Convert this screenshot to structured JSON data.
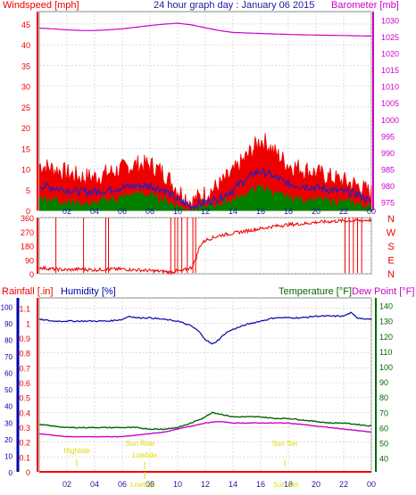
{
  "title": "24 hour graph day : January 06 2015",
  "colors": {
    "wind": "#ee0000",
    "gust_dark": "#2020c0",
    "wind_avg": "#008000",
    "barometer": "#cc00cc",
    "rain": "#ee0000",
    "humidity": "#0000aa",
    "temperature": "#006600",
    "dewpoint": "#cc00cc",
    "astro": "#dddd00",
    "grid": "#c8c8c8"
  },
  "chart_data": [
    {
      "type": "line",
      "panel": "wind_barometer",
      "title": "24 hour graph day : January 06 2015",
      "left_axis": {
        "label": "Windspeed [mph]",
        "ticks": [
          0,
          5,
          10,
          15,
          20,
          25,
          30,
          35,
          40,
          45
        ],
        "range": [
          0,
          48
        ]
      },
      "right_axis": {
        "label": "Barometer [mb]",
        "ticks": [
          975,
          980,
          985,
          990,
          995,
          1000,
          1005,
          1010,
          1015,
          1020,
          1025,
          1030
        ],
        "range": [
          972.5,
          1032.5
        ]
      },
      "x_ticks": [
        "02",
        "04",
        "06",
        "08",
        "10",
        "12",
        "14",
        "16",
        "18",
        "20",
        "22",
        "00"
      ],
      "x_hours": [
        0,
        24
      ],
      "series": [
        {
          "name": "Windspeed gust",
          "axis": "left",
          "x": [
            0,
            1,
            2,
            3,
            4,
            5,
            6,
            7,
            8,
            9,
            10,
            11,
            12,
            13,
            14,
            14.5,
            15,
            15.5,
            16,
            16.5,
            17,
            18,
            19,
            20,
            21,
            22,
            23,
            24
          ],
          "y": [
            11,
            10,
            9,
            8,
            8,
            9,
            10,
            11,
            11,
            9,
            5,
            2,
            4,
            6,
            9,
            11,
            13,
            15,
            17,
            16,
            14,
            11,
            10,
            9,
            8,
            7,
            6,
            4
          ]
        },
        {
          "name": "Windspeed average",
          "axis": "left",
          "x": [
            0,
            1,
            2,
            3,
            4,
            5,
            6,
            7,
            8,
            9,
            10,
            11,
            12,
            13,
            14,
            14.5,
            15,
            15.5,
            16,
            16.5,
            17,
            18,
            19,
            20,
            21,
            22,
            23,
            24
          ],
          "y": [
            6,
            5.5,
            5,
            4.5,
            4.5,
            5,
            5.5,
            6,
            6,
            5,
            2.5,
            1,
            2,
            3,
            5,
            6.5,
            7.5,
            9,
            9.5,
            9,
            8,
            6.5,
            6,
            5.5,
            5,
            4.5,
            4,
            2
          ]
        },
        {
          "name": "Windspeed low",
          "axis": "left",
          "x": [
            0,
            1,
            2,
            3,
            4,
            5,
            6,
            7,
            8,
            9,
            10,
            11,
            12,
            13,
            14,
            14.5,
            15,
            15.5,
            16,
            16.5,
            17,
            18,
            19,
            20,
            21,
            22,
            23,
            24
          ],
          "y": [
            3,
            2.5,
            2,
            1.5,
            1.5,
            2.5,
            3,
            4,
            3.5,
            2.5,
            1,
            0,
            0.5,
            1.5,
            2.5,
            3,
            4,
            5,
            5.5,
            5,
            4,
            3,
            2.5,
            2.5,
            2,
            2,
            1.5,
            0.5
          ]
        },
        {
          "name": "Barometer",
          "axis": "right",
          "x": [
            0,
            1,
            2,
            3,
            4,
            5,
            6,
            7,
            8,
            9,
            10,
            11,
            12,
            13,
            14,
            16,
            18,
            20,
            22,
            23,
            24
          ],
          "y": [
            1027.5,
            1027.3,
            1027.0,
            1026.8,
            1026.8,
            1027.0,
            1027.3,
            1027.8,
            1028.3,
            1028.7,
            1029.0,
            1028.5,
            1027.6,
            1026.8,
            1026.2,
            1025.9,
            1025.6,
            1025.4,
            1025.3,
            1025.2,
            1025.1
          ]
        }
      ]
    },
    {
      "type": "scatter",
      "panel": "wind_direction",
      "left_axis": {
        "ticks": [
          0,
          90,
          180,
          270,
          360
        ],
        "range": [
          0,
          360
        ]
      },
      "right_axis": {
        "labels": [
          "N",
          "W",
          "S",
          "E",
          "N"
        ]
      },
      "series": [
        {
          "name": "Wind direction",
          "x": [
            0,
            1,
            2,
            3,
            4,
            5,
            6,
            7,
            8,
            9,
            9.5,
            10,
            10.3,
            10.6,
            11,
            11.3,
            11.6,
            12,
            13,
            14,
            15,
            16,
            17,
            18,
            19,
            20,
            21,
            22,
            23,
            24
          ],
          "y": [
            40,
            30,
            25,
            30,
            25,
            30,
            30,
            25,
            20,
            15,
            10,
            20,
            15,
            30,
            40,
            90,
            180,
            215,
            245,
            260,
            275,
            290,
            305,
            315,
            320,
            330,
            335,
            340,
            340,
            345
          ]
        }
      ]
    },
    {
      "type": "line",
      "panel": "rain_humidity_temperature",
      "labels": {
        "rain": "Rainfall [.in]",
        "humidity": "Humidity [%]",
        "temperature": "Temperature [°F]",
        "dewpoint": "Dew Point [°F]"
      },
      "left_axis_rain": {
        "ticks": [
          0,
          0.1,
          0.2,
          0.3,
          0.4,
          0.5,
          0.6,
          0.7,
          0.8,
          0.9,
          1,
          1.1
        ],
        "labels": [
          "0",
          "0.1",
          "0.2",
          "0.3",
          "0.4",
          "0.5",
          "0.6",
          "0.7",
          "0.8",
          "0.9",
          "1",
          "1.1"
        ],
        "range": [
          0,
          1.17
        ]
      },
      "left_axis_humidity": {
        "ticks": [
          0,
          10,
          20,
          30,
          40,
          50,
          60,
          70,
          80,
          90,
          100
        ],
        "range": [
          0,
          105
        ]
      },
      "right_axis_temp": {
        "ticks": [
          40,
          50,
          60,
          70,
          80,
          90,
          100,
          110,
          120,
          130,
          140
        ],
        "range": [
          31,
          145
        ]
      },
      "series": [
        {
          "name": "Humidity",
          "axis": "humidity",
          "x": [
            0,
            1,
            2,
            3,
            4,
            5,
            6,
            6.5,
            7,
            8,
            9,
            10,
            11,
            11.5,
            12,
            12.5,
            13,
            13.5,
            14,
            15,
            16,
            17,
            18,
            19,
            20,
            21,
            22,
            22.5,
            23,
            24
          ],
          "y": [
            92,
            91,
            91,
            91,
            91,
            91,
            92,
            94,
            93,
            93,
            92,
            91,
            88,
            85,
            80,
            77,
            80,
            84,
            86,
            89,
            91,
            93,
            93,
            93,
            94,
            94,
            94,
            96,
            93,
            92
          ]
        },
        {
          "name": "Temperature",
          "axis": "temp",
          "x": [
            0,
            1,
            2,
            3,
            4,
            5,
            6,
            7,
            8,
            9,
            10,
            11,
            12,
            12.5,
            13,
            14,
            15,
            16,
            17,
            18,
            19,
            20,
            21,
            22,
            23,
            24
          ],
          "y": [
            62,
            61,
            60,
            60,
            60,
            60,
            60,
            60,
            59,
            59,
            60,
            63,
            67,
            70,
            69,
            67,
            67,
            67,
            66,
            66,
            65,
            64,
            63,
            63,
            62,
            61
          ]
        },
        {
          "name": "Dew Point",
          "axis": "temp",
          "x": [
            0,
            1,
            2,
            3,
            4,
            5,
            6,
            7,
            8,
            9,
            10,
            11,
            12,
            13,
            14,
            15,
            16,
            17,
            18,
            19,
            20,
            21,
            22,
            23,
            24
          ],
          "y": [
            56,
            55,
            54,
            54,
            54,
            54,
            54,
            55,
            56,
            57,
            59,
            61,
            63,
            64,
            63,
            63,
            63,
            63,
            63,
            62,
            61,
            60,
            59,
            58,
            57
          ]
        },
        {
          "name": "Rainfall",
          "axis": "rain",
          "x": [
            0,
            24
          ],
          "y": [
            0,
            0
          ]
        }
      ],
      "annotations": {
        "hightide_label": "Hightide",
        "lowtide_label": "Lowtide",
        "sunrise_label": "Sun Rise",
        "sunset_label": "Sun Set",
        "lowtide_bottom_label": "Lowtide",
        "sunset_bottom_label": "Sun Set"
      }
    }
  ]
}
